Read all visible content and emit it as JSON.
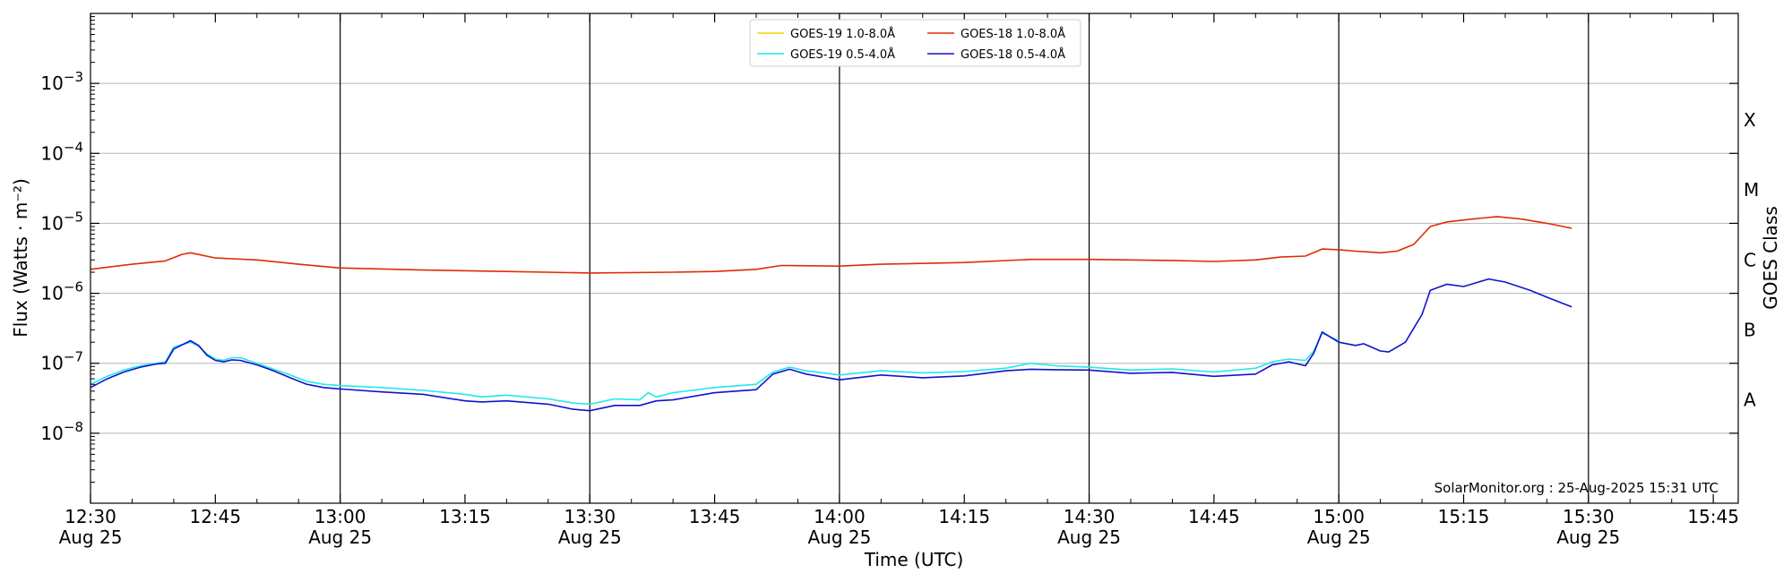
{
  "chart_data": {
    "type": "line",
    "title": "",
    "xlabel": "Time (UTC)",
    "ylabel": "Flux (Watts · m⁻²)",
    "y2label": "GOES Class",
    "yscale": "log",
    "xlim": [
      "12:30",
      "15:48"
    ],
    "ylim": [
      1e-09,
      0.01
    ],
    "grid": "horizontal at each decade",
    "legend_position": "top-center",
    "x_ticks": [
      {
        "time": "12:30",
        "label": "12:30",
        "sublabel": "Aug 25"
      },
      {
        "time": "12:45",
        "label": "12:45",
        "sublabel": ""
      },
      {
        "time": "13:00",
        "label": "13:00",
        "sublabel": "Aug 25"
      },
      {
        "time": "13:15",
        "label": "13:15",
        "sublabel": ""
      },
      {
        "time": "13:30",
        "label": "13:30",
        "sublabel": "Aug 25"
      },
      {
        "time": "13:45",
        "label": "13:45",
        "sublabel": ""
      },
      {
        "time": "14:00",
        "label": "14:00",
        "sublabel": "Aug 25"
      },
      {
        "time": "14:15",
        "label": "14:15",
        "sublabel": ""
      },
      {
        "time": "14:30",
        "label": "14:30",
        "sublabel": "Aug 25"
      },
      {
        "time": "14:45",
        "label": "14:45",
        "sublabel": ""
      },
      {
        "time": "15:00",
        "label": "15:00",
        "sublabel": "Aug 25"
      },
      {
        "time": "15:15",
        "label": "15:15",
        "sublabel": ""
      },
      {
        "time": "15:30",
        "label": "15:30",
        "sublabel": "Aug 25"
      },
      {
        "time": "15:45",
        "label": "15:45",
        "sublabel": ""
      }
    ],
    "vertical_lines": [
      "13:00",
      "13:30",
      "14:00",
      "14:30",
      "15:00",
      "15:30"
    ],
    "y_ticks": [
      {
        "value": 1e-08,
        "base": "10",
        "exp": "−8"
      },
      {
        "value": 1e-07,
        "base": "10",
        "exp": "−7"
      },
      {
        "value": 1e-06,
        "base": "10",
        "exp": "−6"
      },
      {
        "value": 1e-05,
        "base": "10",
        "exp": "−5"
      },
      {
        "value": 0.0001,
        "base": "10",
        "exp": "−4"
      },
      {
        "value": 0.001,
        "base": "10",
        "exp": "−3"
      }
    ],
    "goes_classes": [
      {
        "label": "A",
        "value": 3e-08
      },
      {
        "label": "B",
        "value": 3e-07
      },
      {
        "label": "C",
        "value": 3e-06
      },
      {
        "label": "M",
        "value": 3e-05
      },
      {
        "label": "X",
        "value": 0.0003
      }
    ],
    "series": [
      {
        "name": "GOES-19 1.0-8.0Å",
        "color": "#f5d300",
        "data": []
      },
      {
        "name": "GOES-19 0.5-4.0Å",
        "color": "#22e8e8",
        "data": [
          [
            "12:30",
            5e-08
          ],
          [
            "12:32",
            6.5e-08
          ],
          [
            "12:34",
            8e-08
          ],
          [
            "12:36",
            9.2e-08
          ],
          [
            "12:38",
            1e-07
          ],
          [
            "12:39",
            1.05e-07
          ],
          [
            "12:40",
            1.7e-07
          ],
          [
            "12:42",
            2e-07
          ],
          [
            "12:43",
            1.75e-07
          ],
          [
            "12:44",
            1.35e-07
          ],
          [
            "12:45",
            1.15e-07
          ],
          [
            "12:46",
            1.1e-07
          ],
          [
            "12:47",
            1.2e-07
          ],
          [
            "12:48",
            1.2e-07
          ],
          [
            "12:50",
            1e-07
          ],
          [
            "12:52",
            8.2e-08
          ],
          [
            "12:54",
            6.8e-08
          ],
          [
            "12:56",
            5.5e-08
          ],
          [
            "12:58",
            5e-08
          ],
          [
            "13:00",
            4.8e-08
          ],
          [
            "13:05",
            4.5e-08
          ],
          [
            "13:10",
            4.1e-08
          ],
          [
            "13:15",
            3.6e-08
          ],
          [
            "13:17",
            3.3e-08
          ],
          [
            "13:20",
            3.5e-08
          ],
          [
            "13:25",
            3.1e-08
          ],
          [
            "13:28",
            2.7e-08
          ],
          [
            "13:30",
            2.6e-08
          ],
          [
            "13:33",
            3.1e-08
          ],
          [
            "13:36",
            3e-08
          ],
          [
            "13:37",
            3.8e-08
          ],
          [
            "13:38",
            3.3e-08
          ],
          [
            "13:40",
            3.8e-08
          ],
          [
            "13:45",
            4.5e-08
          ],
          [
            "13:50",
            5e-08
          ],
          [
            "13:52",
            7.5e-08
          ],
          [
            "13:54",
            8.8e-08
          ],
          [
            "13:56",
            7.8e-08
          ],
          [
            "14:00",
            6.8e-08
          ],
          [
            "14:05",
            7.8e-08
          ],
          [
            "14:10",
            7.3e-08
          ],
          [
            "14:15",
            7.6e-08
          ],
          [
            "14:20",
            8.5e-08
          ],
          [
            "14:23",
            1e-07
          ],
          [
            "14:26",
            9.2e-08
          ],
          [
            "14:30",
            8.8e-08
          ],
          [
            "14:35",
            8e-08
          ],
          [
            "14:40",
            8.3e-08
          ],
          [
            "14:45",
            7.5e-08
          ],
          [
            "14:50",
            8.5e-08
          ],
          [
            "14:52",
            1.05e-07
          ],
          [
            "14:54",
            1.15e-07
          ],
          [
            "14:56",
            1.1e-07
          ],
          [
            "14:57",
            1.5e-07
          ],
          [
            "14:58",
            2.7e-07
          ],
          [
            "15:00",
            2.1e-07
          ]
        ]
      },
      {
        "name": "GOES-18 1.0-8.0Å",
        "color": "#e02c00",
        "data": [
          [
            "12:30",
            2.2e-06
          ],
          [
            "12:35",
            2.6e-06
          ],
          [
            "12:39",
            2.9e-06
          ],
          [
            "12:41",
            3.6e-06
          ],
          [
            "12:42",
            3.8e-06
          ],
          [
            "12:45",
            3.2e-06
          ],
          [
            "12:50",
            3e-06
          ],
          [
            "12:55",
            2.6e-06
          ],
          [
            "13:00",
            2.3e-06
          ],
          [
            "13:10",
            2.15e-06
          ],
          [
            "13:20",
            2.05e-06
          ],
          [
            "13:30",
            1.95e-06
          ],
          [
            "13:40",
            2e-06
          ],
          [
            "13:45",
            2.05e-06
          ],
          [
            "13:50",
            2.2e-06
          ],
          [
            "13:53",
            2.5e-06
          ],
          [
            "14:00",
            2.45e-06
          ],
          [
            "14:05",
            2.6e-06
          ],
          [
            "14:15",
            2.75e-06
          ],
          [
            "14:23",
            3.05e-06
          ],
          [
            "14:30",
            3.05e-06
          ],
          [
            "14:40",
            2.95e-06
          ],
          [
            "14:45",
            2.85e-06
          ],
          [
            "14:50",
            3e-06
          ],
          [
            "14:53",
            3.3e-06
          ],
          [
            "14:56",
            3.4e-06
          ],
          [
            "14:58",
            4.3e-06
          ],
          [
            "15:00",
            4.2e-06
          ],
          [
            "15:02",
            4e-06
          ],
          [
            "15:05",
            3.8e-06
          ],
          [
            "15:07",
            4e-06
          ],
          [
            "15:09",
            5e-06
          ],
          [
            "15:11",
            9e-06
          ],
          [
            "15:13",
            1.05e-05
          ],
          [
            "15:16",
            1.15e-05
          ],
          [
            "15:19",
            1.25e-05
          ],
          [
            "15:22",
            1.15e-05
          ],
          [
            "15:25",
            1e-05
          ],
          [
            "15:28",
            8.5e-06
          ]
        ]
      },
      {
        "name": "GOES-18 0.5-4.0Å",
        "color": "#1212cc",
        "data": [
          [
            "12:30",
            4.5e-08
          ],
          [
            "12:32",
            6e-08
          ],
          [
            "12:34",
            7.5e-08
          ],
          [
            "12:36",
            8.8e-08
          ],
          [
            "12:38",
            9.8e-08
          ],
          [
            "12:39",
            1e-07
          ],
          [
            "12:40",
            1.6e-07
          ],
          [
            "12:42",
            2.1e-07
          ],
          [
            "12:43",
            1.8e-07
          ],
          [
            "12:44",
            1.3e-07
          ],
          [
            "12:45",
            1.1e-07
          ],
          [
            "12:46",
            1.05e-07
          ],
          [
            "12:47",
            1.12e-07
          ],
          [
            "12:48",
            1.1e-07
          ],
          [
            "12:50",
            9.5e-08
          ],
          [
            "12:52",
            7.8e-08
          ],
          [
            "12:54",
            6.2e-08
          ],
          [
            "12:56",
            5e-08
          ],
          [
            "12:58",
            4.5e-08
          ],
          [
            "13:00",
            4.3e-08
          ],
          [
            "13:05",
            3.9e-08
          ],
          [
            "13:10",
            3.6e-08
          ],
          [
            "13:15",
            2.9e-08
          ],
          [
            "13:17",
            2.8e-08
          ],
          [
            "13:20",
            2.9e-08
          ],
          [
            "13:25",
            2.6e-08
          ],
          [
            "13:28",
            2.2e-08
          ],
          [
            "13:30",
            2.1e-08
          ],
          [
            "13:33",
            2.5e-08
          ],
          [
            "13:36",
            2.5e-08
          ],
          [
            "13:38",
            2.9e-08
          ],
          [
            "13:40",
            3e-08
          ],
          [
            "13:45",
            3.8e-08
          ],
          [
            "13:50",
            4.2e-08
          ],
          [
            "13:52",
            7e-08
          ],
          [
            "13:54",
            8.2e-08
          ],
          [
            "13:56",
            7e-08
          ],
          [
            "14:00",
            5.8e-08
          ],
          [
            "14:05",
            6.8e-08
          ],
          [
            "14:10",
            6.2e-08
          ],
          [
            "14:15",
            6.6e-08
          ],
          [
            "14:20",
            7.8e-08
          ],
          [
            "14:23",
            8.2e-08
          ],
          [
            "14:26",
            8.1e-08
          ],
          [
            "14:30",
            8e-08
          ],
          [
            "14:35",
            7.2e-08
          ],
          [
            "14:40",
            7.4e-08
          ],
          [
            "14:45",
            6.5e-08
          ],
          [
            "14:50",
            7e-08
          ],
          [
            "14:52",
            9.5e-08
          ],
          [
            "14:54",
            1.05e-07
          ],
          [
            "14:56",
            9.2e-08
          ],
          [
            "14:57",
            1.4e-07
          ],
          [
            "14:58",
            2.8e-07
          ],
          [
            "15:00",
            2e-07
          ],
          [
            "15:02",
            1.8e-07
          ],
          [
            "15:03",
            1.9e-07
          ],
          [
            "15:05",
            1.5e-07
          ],
          [
            "15:06",
            1.45e-07
          ],
          [
            "15:08",
            2e-07
          ],
          [
            "15:10",
            5e-07
          ],
          [
            "15:11",
            1.1e-06
          ],
          [
            "15:13",
            1.35e-06
          ],
          [
            "15:15",
            1.25e-06
          ],
          [
            "15:18",
            1.6e-06
          ],
          [
            "15:20",
            1.45e-06
          ],
          [
            "15:23",
            1.1e-06
          ],
          [
            "15:25",
            8.8e-07
          ],
          [
            "15:28",
            6.4e-07
          ]
        ]
      }
    ],
    "legend_entries": [
      {
        "label": "GOES-19 1.0-8.0Å",
        "color": "#f5d300"
      },
      {
        "label": "GOES-19 0.5-4.0Å",
        "color": "#22e8e8"
      },
      {
        "label": "GOES-18 1.0-8.0Å",
        "color": "#e02c00"
      },
      {
        "label": "GOES-18 0.5-4.0Å",
        "color": "#1212cc"
      }
    ],
    "credit": "SolarMonitor.org : 25-Aug-2025 15:31 UTC"
  }
}
